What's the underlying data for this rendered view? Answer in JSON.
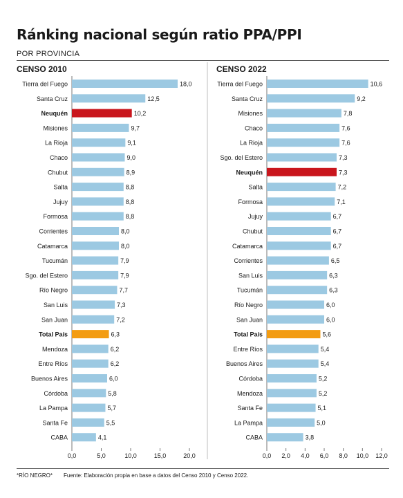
{
  "title": "Ránking nacional según ratio PPA/PPI",
  "subtitle": "POR PROVINCIA",
  "footer": {
    "note": "*RÍO NEGRO*",
    "source": "Fuente: Elaboración propia en base a datos del Censo 2010 y Censo 2022."
  },
  "colors": {
    "default": "#9cc9e2",
    "highlight": "#c9161d",
    "total": "#f39c12"
  },
  "chart_data": [
    {
      "type": "bar",
      "orientation": "horizontal",
      "title": "CENSO 2010",
      "categories": [
        "Tierra del Fuego",
        "Santa Cruz",
        "Neuquén",
        "Misiones",
        "La Rioja",
        "Chaco",
        "Chubut",
        "Salta",
        "Jujuy",
        "Formosa",
        "Corrientes",
        "Catamarca",
        "Tucumán",
        "Sgo. del Estero",
        "Río Negro",
        "San Luis",
        "San Juan",
        "Total País",
        "Mendoza",
        "Entre Ríos",
        "Buenos Aires",
        "Córdoba",
        "La Pampa",
        "Santa Fe",
        "CABA"
      ],
      "values": [
        18.0,
        12.5,
        10.2,
        9.7,
        9.1,
        9.0,
        8.9,
        8.8,
        8.8,
        8.8,
        8.0,
        8.0,
        7.9,
        7.9,
        7.7,
        7.3,
        7.2,
        6.3,
        6.2,
        6.2,
        6.0,
        5.8,
        5.7,
        5.5,
        4.1
      ],
      "value_labels": [
        "18,0",
        "12,5",
        "10,2",
        "9,7",
        "9,1",
        "9,0",
        "8,9",
        "8,8",
        "8,8",
        "8,8",
        "8,0",
        "8,0",
        "7,9",
        "7,9",
        "7,7",
        "7,3",
        "7,2",
        "6,3",
        "6,2",
        "6,2",
        "6,0",
        "5,8",
        "5,7",
        "5,5",
        "4,1"
      ],
      "highlight": "Neuquén",
      "total": "Total País",
      "xlim": [
        0,
        20
      ],
      "xticks": [
        "0,0",
        "5,0",
        "10,0",
        "15,0",
        "20,0"
      ],
      "grid": false
    },
    {
      "type": "bar",
      "orientation": "horizontal",
      "title": "CENSO 2022",
      "categories": [
        "Tierra del Fuego",
        "Santa Cruz",
        "Misiones",
        "Chaco",
        "La Rioja",
        "Sgo. del Estero",
        "Neuquén",
        "Salta",
        "Formosa",
        "Jujuy",
        "Chubut",
        "Catamarca",
        "Corrientes",
        "San Luis",
        "Tucumán",
        "Río Negro",
        "San Juan",
        "Total País",
        "Entre Ríos",
        "Buenos Aires",
        "Córdoba",
        "Mendoza",
        "Santa Fe",
        "La Pampa",
        "CABA"
      ],
      "values": [
        10.6,
        9.2,
        7.8,
        7.6,
        7.6,
        7.3,
        7.3,
        7.2,
        7.1,
        6.7,
        6.7,
        6.7,
        6.5,
        6.3,
        6.3,
        6.0,
        6.0,
        5.6,
        5.4,
        5.4,
        5.2,
        5.2,
        5.1,
        5.0,
        3.8
      ],
      "value_labels": [
        "10,6",
        "9,2",
        "7,8",
        "7,6",
        "7,6",
        "7,3",
        "7,3",
        "7,2",
        "7,1",
        "6,7",
        "6,7",
        "6,7",
        "6,5",
        "6,3",
        "6,3",
        "6,0",
        "6,0",
        "5,6",
        "5,4",
        "5,4",
        "5,2",
        "5,2",
        "5,1",
        "5,0",
        "3,8"
      ],
      "highlight": "Neuquén",
      "total": "Total País",
      "xlim": [
        0,
        12
      ],
      "xticks": [
        "0,0",
        "2,0",
        "4,0",
        "6,0",
        "8,0",
        "10,0",
        "12,0"
      ],
      "grid": false
    }
  ]
}
